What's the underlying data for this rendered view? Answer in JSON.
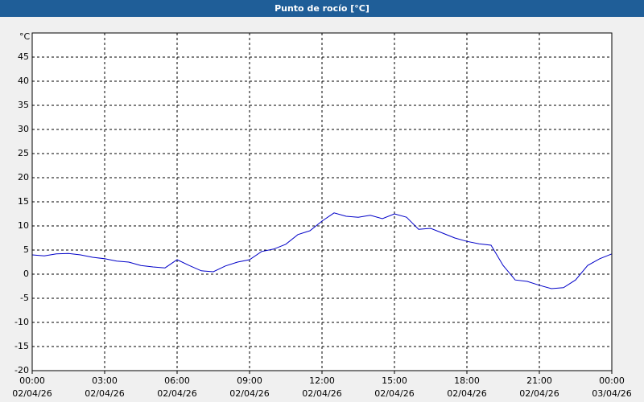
{
  "chart_data": {
    "type": "line",
    "title": "Punto de rocío [°C]",
    "y_unit": "°C",
    "x": [
      0,
      0.5,
      1,
      1.5,
      2,
      2.5,
      3,
      3.5,
      4,
      4.5,
      5,
      5.5,
      6,
      6.5,
      7,
      7.5,
      8,
      8.5,
      9,
      9.5,
      10,
      10.5,
      11,
      11.5,
      12,
      12.5,
      13,
      13.5,
      14,
      14.5,
      15,
      15.5,
      16,
      16.5,
      17,
      17.5,
      18,
      18.5,
      19,
      19.5,
      20,
      20.5,
      21,
      21.5,
      22,
      22.5,
      23,
      23.5,
      24
    ],
    "series": [
      {
        "color": "#0000c8",
        "values": [
          4.0,
          3.8,
          4.2,
          4.3,
          4.0,
          3.5,
          3.2,
          2.7,
          2.5,
          1.8,
          1.5,
          1.3,
          3.0,
          1.8,
          0.7,
          0.5,
          1.7,
          2.5,
          3.0,
          4.7,
          5.2,
          6.2,
          8.2,
          9.0,
          11.0,
          12.7,
          12.0,
          11.8,
          12.2,
          11.5,
          12.5,
          11.8,
          9.3,
          9.5,
          8.5,
          7.5,
          6.8,
          6.3,
          6.0,
          1.8,
          -1.2,
          -1.5,
          -2.3,
          -3.0,
          -2.8,
          -1.2,
          1.8,
          3.2,
          4.2
        ]
      }
    ],
    "xlim": [
      0,
      24
    ],
    "xticks": [
      {
        "value": 0,
        "label": "00:00"
      },
      {
        "value": 3,
        "label": "03:00"
      },
      {
        "value": 6,
        "label": "06:00"
      },
      {
        "value": 9,
        "label": "09:00"
      },
      {
        "value": 12,
        "label": "12:00"
      },
      {
        "value": 15,
        "label": "15:00"
      },
      {
        "value": 18,
        "label": "18:00"
      },
      {
        "value": 21,
        "label": "21:00"
      },
      {
        "value": 24,
        "label": "00:00"
      }
    ],
    "xtick_dates": [
      "02/04/26",
      "02/04/26",
      "02/04/26",
      "02/04/26",
      "02/04/26",
      "02/04/26",
      "02/04/26",
      "02/04/26",
      "03/04/26"
    ],
    "ylim": [
      -20,
      50
    ],
    "yticks": [
      -20,
      -15,
      -10,
      -5,
      0,
      5,
      10,
      15,
      20,
      25,
      30,
      35,
      40,
      45
    ],
    "grid": true
  }
}
